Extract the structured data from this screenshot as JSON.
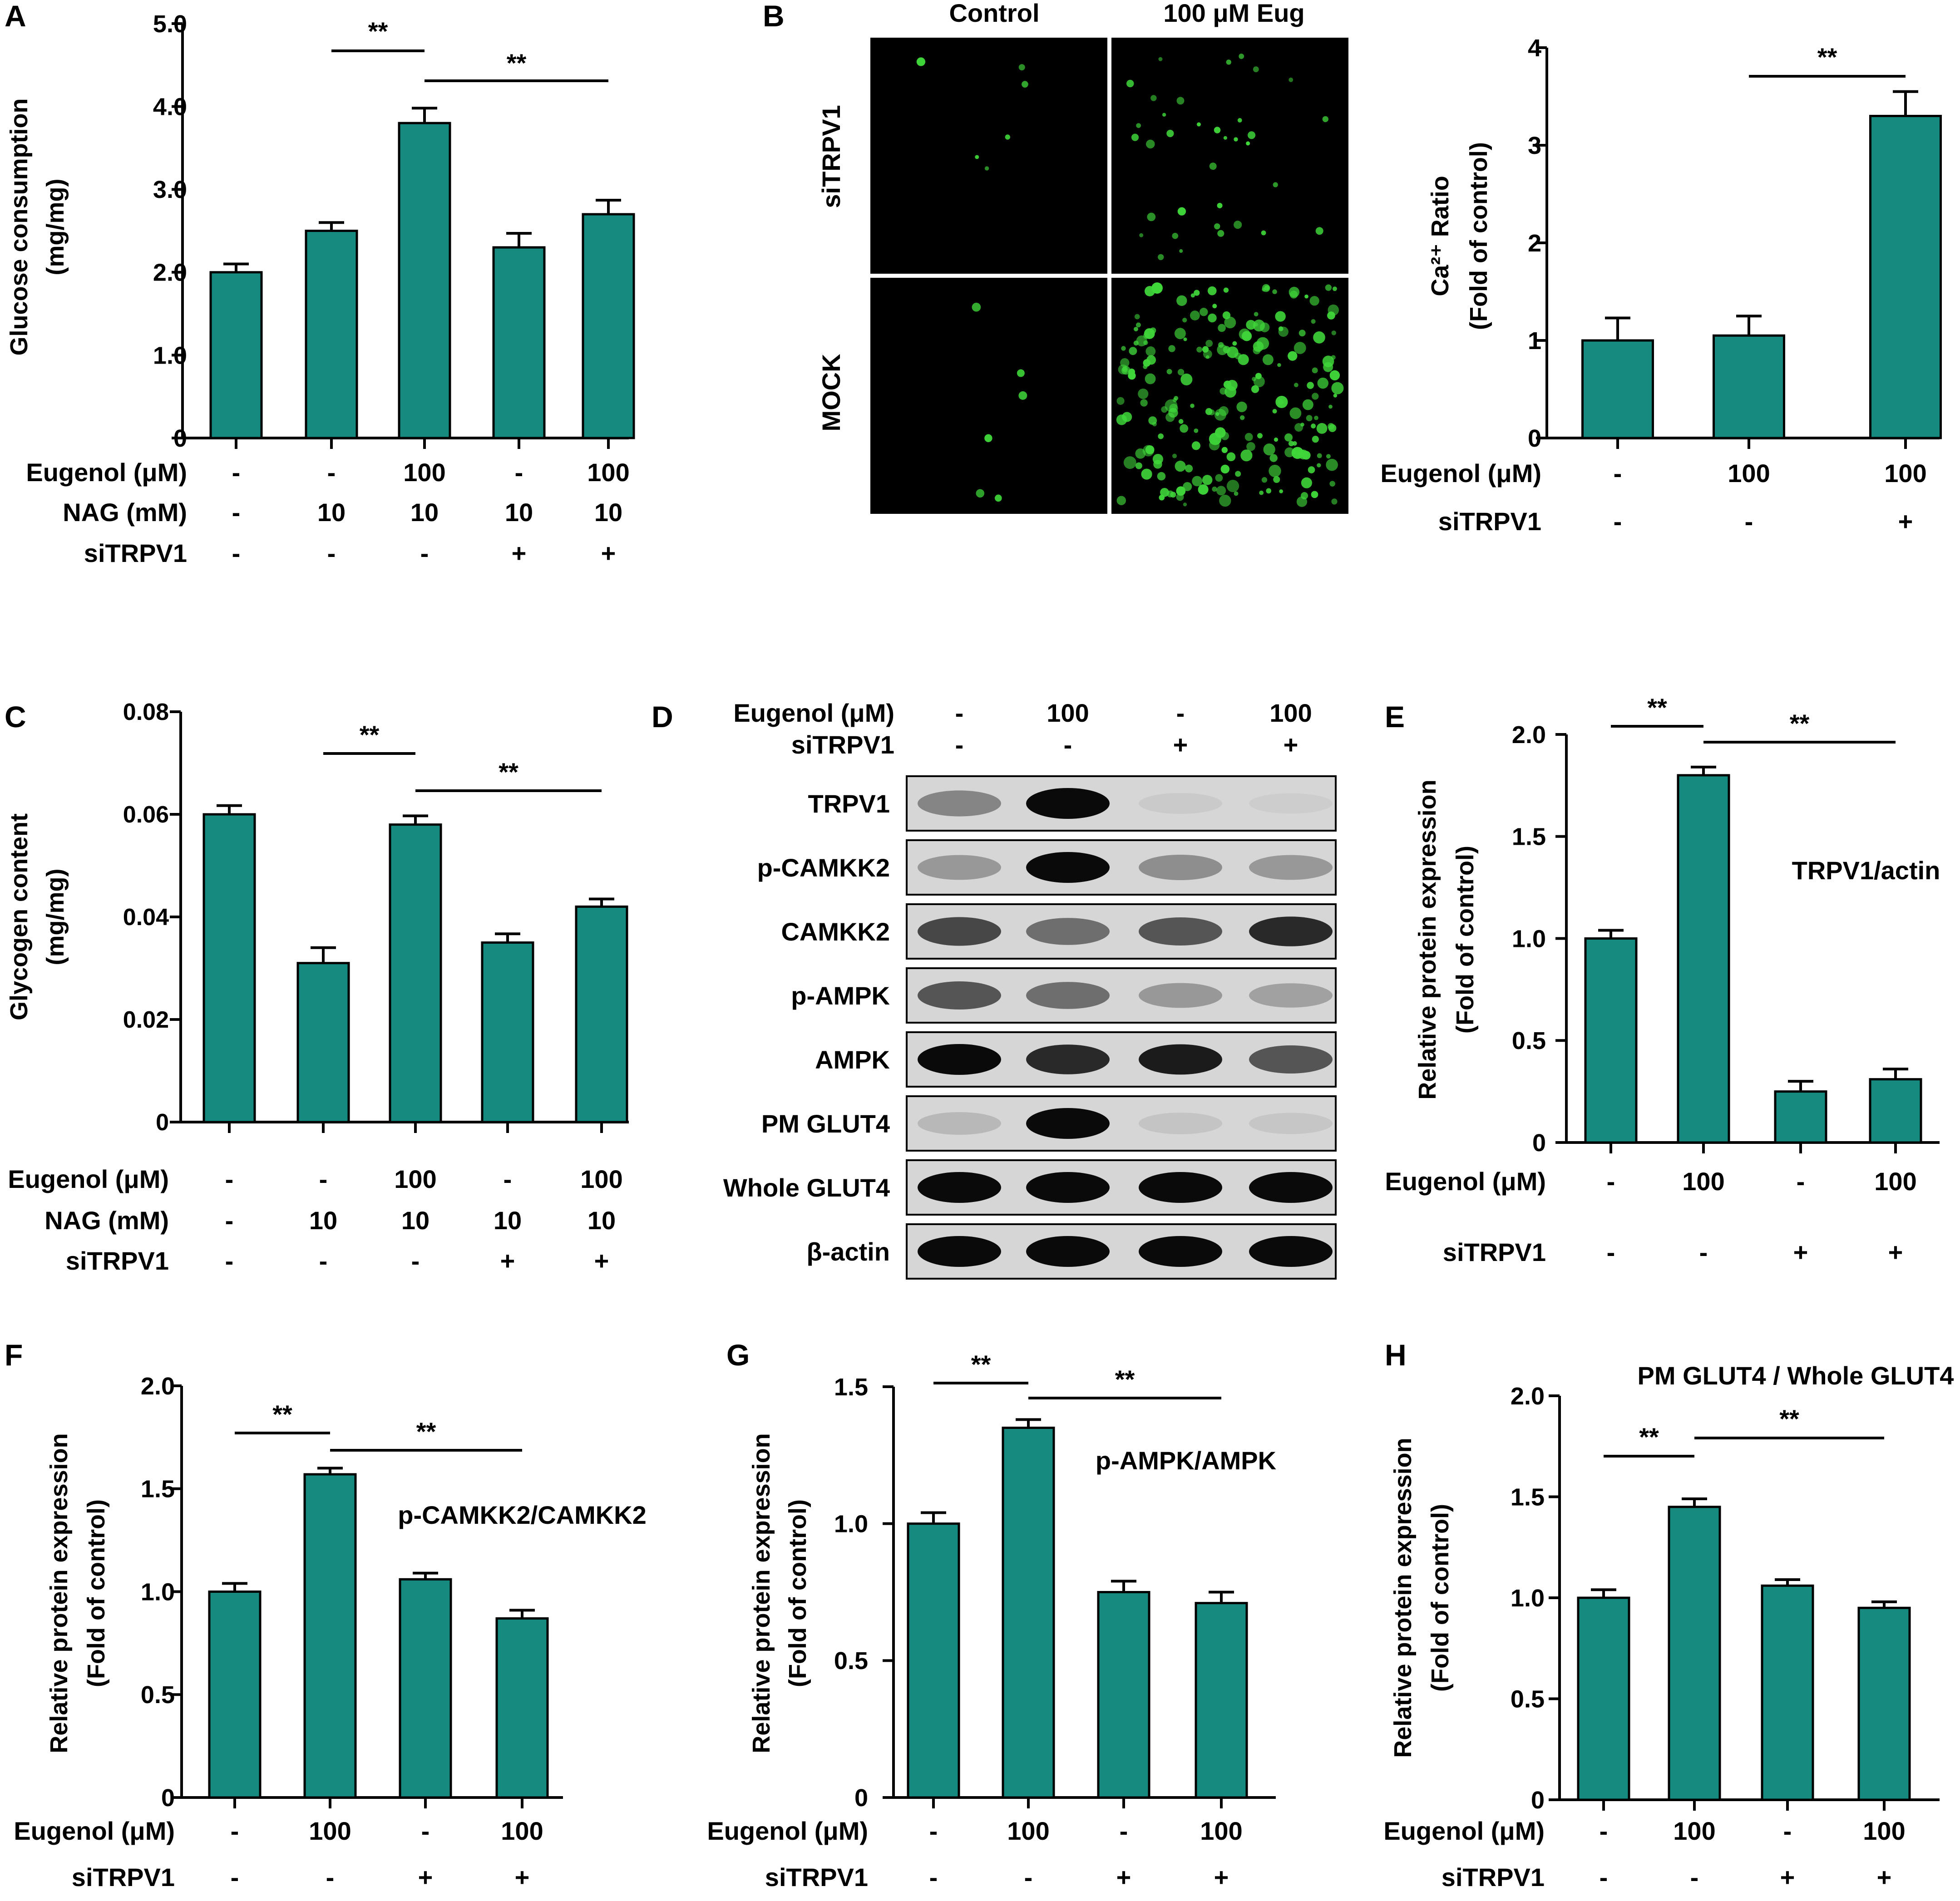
{
  "colors": {
    "bar": "#168a7f",
    "bar_stroke": "#000000",
    "axis": "#000000",
    "micro_bg": "#000000",
    "cell_green": "#3fd63a"
  },
  "panel_letters": {
    "A": "A",
    "B": "B",
    "C": "C",
    "D": "D",
    "E": "E",
    "F": "F",
    "G": "G",
    "H": "H"
  },
  "micrograph": {
    "columns": [
      "Control",
      "100 μM Eug"
    ],
    "rows": [
      "siTRPV1",
      "MOCK"
    ]
  },
  "western_blot": {
    "conditions": [
      {
        "label": "Eugenol (μM)",
        "values": [
          "-",
          "100",
          "-",
          "100"
        ]
      },
      {
        "label": "siTRPV1",
        "values": [
          "-",
          "-",
          "+",
          "+"
        ]
      }
    ],
    "bands": [
      "TRPV1",
      "p-CAMKK2",
      "CAMKK2",
      "p-AMPK",
      "AMPK",
      "PM GLUT4",
      "Whole GLUT4",
      "β-actin"
    ]
  },
  "chart_data": [
    {
      "panel": "A",
      "type": "bar",
      "ylabel": [
        "Glucose consumption",
        "(mg/mg)"
      ],
      "ylim": [
        0,
        5
      ],
      "yticks": [
        0,
        1,
        2,
        3,
        4,
        5
      ],
      "ytick_labels": [
        "0",
        "1.0",
        "2.0",
        "3.0",
        "4.0",
        "5.0"
      ],
      "values": [
        2.0,
        2.5,
        3.8,
        2.3,
        2.7
      ],
      "errors": [
        0.1,
        0.1,
        0.18,
        0.17,
        0.17
      ],
      "conditions": [
        {
          "label": "Eugenol (μM)",
          "values": [
            "-",
            "-",
            "100",
            "-",
            "100"
          ]
        },
        {
          "label": "NAG (mM)",
          "values": [
            "-",
            "10",
            "10",
            "10",
            "10"
          ]
        },
        {
          "label": "siTRPV1",
          "values": [
            "-",
            "-",
            "-",
            "+",
            "+"
          ]
        }
      ],
      "significance": [
        {
          "from": 1,
          "to": 2,
          "label": "**"
        },
        {
          "from": 2,
          "to": 4,
          "label": "**"
        }
      ]
    },
    {
      "panel": "B",
      "type": "bar",
      "ylabel": [
        "Ca²⁺ Ratio",
        "(Fold of control)"
      ],
      "ylim": [
        0,
        4
      ],
      "yticks": [
        0,
        1,
        2,
        3,
        4
      ],
      "ytick_labels": [
        "0",
        "1",
        "2",
        "3",
        "4"
      ],
      "values": [
        1.0,
        1.05,
        3.3
      ],
      "errors": [
        0.23,
        0.2,
        0.25
      ],
      "conditions": [
        {
          "label": "Eugenol (μM)",
          "values": [
            "-",
            "100",
            "100"
          ]
        },
        {
          "label": "siTRPV1",
          "values": [
            "-",
            "-",
            "+"
          ]
        }
      ],
      "significance": [
        {
          "from": 1,
          "to": 2,
          "label": "**"
        }
      ]
    },
    {
      "panel": "C",
      "type": "bar",
      "ylabel": [
        "Glycogen content",
        "(mg/mg)"
      ],
      "ylim": [
        0,
        0.08
      ],
      "yticks": [
        0,
        0.02,
        0.04,
        0.06,
        0.08
      ],
      "ytick_labels": [
        "0",
        "0.02",
        "0.04",
        "0.06",
        "0.08"
      ],
      "values": [
        0.06,
        0.031,
        0.058,
        0.035,
        0.042
      ],
      "errors": [
        0.0017,
        0.003,
        0.0017,
        0.0017,
        0.0015
      ],
      "conditions": [
        {
          "label": "Eugenol (μM)",
          "values": [
            "-",
            "-",
            "100",
            "-",
            "100"
          ]
        },
        {
          "label": "NAG (mM)",
          "values": [
            "-",
            "10",
            "10",
            "10",
            "10"
          ]
        },
        {
          "label": "siTRPV1",
          "values": [
            "-",
            "-",
            "-",
            "+",
            "+"
          ]
        }
      ],
      "significance": [
        {
          "from": 1,
          "to": 2,
          "label": "**"
        },
        {
          "from": 2,
          "to": 4,
          "label": "**"
        }
      ]
    },
    {
      "panel": "E",
      "type": "bar",
      "ylabel": [
        "Relative protein expression",
        "(Fold of control)"
      ],
      "annotation": "TRPV1/actin",
      "ylim": [
        0,
        2
      ],
      "yticks": [
        0,
        0.5,
        1,
        1.5,
        2
      ],
      "ytick_labels": [
        "0",
        "0.5",
        "1.0",
        "1.5",
        "2.0"
      ],
      "values": [
        1.0,
        1.8,
        0.25,
        0.31
      ],
      "errors": [
        0.04,
        0.04,
        0.05,
        0.05
      ],
      "conditions": [
        {
          "label": "Eugenol (μM)",
          "values": [
            "-",
            "100",
            "-",
            "100"
          ]
        },
        {
          "label": "siTRPV1",
          "values": [
            "-",
            "-",
            "+",
            "+"
          ]
        }
      ],
      "significance": [
        {
          "from": 0,
          "to": 1,
          "label": "**"
        },
        {
          "from": 1,
          "to": 3,
          "label": "**"
        }
      ]
    },
    {
      "panel": "F",
      "type": "bar",
      "ylabel": [
        "Relative protein expression",
        "(Fold of control)"
      ],
      "annotation": "p-CAMKK2/CAMKK2",
      "ylim": [
        0,
        2
      ],
      "yticks": [
        0,
        0.5,
        1,
        1.5,
        2
      ],
      "ytick_labels": [
        "0",
        "0.5",
        "1.0",
        "1.5",
        "2.0"
      ],
      "values": [
        1.0,
        1.57,
        1.06,
        0.87
      ],
      "errors": [
        0.04,
        0.03,
        0.03,
        0.04
      ],
      "conditions": [
        {
          "label": "Eugenol (μM)",
          "values": [
            "-",
            "100",
            "-",
            "100"
          ]
        },
        {
          "label": "siTRPV1",
          "values": [
            "-",
            "-",
            "+",
            "+"
          ]
        }
      ],
      "significance": [
        {
          "from": 0,
          "to": 1,
          "label": "**"
        },
        {
          "from": 1,
          "to": 3,
          "label": "**"
        }
      ]
    },
    {
      "panel": "G",
      "type": "bar",
      "ylabel": [
        "Relative protein expression",
        "(Fold of control)"
      ],
      "annotation": "p-AMPK/AMPK",
      "ylim": [
        0,
        1.5
      ],
      "yticks": [
        0,
        0.5,
        1,
        1.5
      ],
      "ytick_labels": [
        "0",
        "0.5",
        "1.0",
        "1.5"
      ],
      "values": [
        1.0,
        1.35,
        0.75,
        0.71
      ],
      "errors": [
        0.04,
        0.03,
        0.04,
        0.04
      ],
      "conditions": [
        {
          "label": "Eugenol (μM)",
          "values": [
            "-",
            "100",
            "-",
            "100"
          ]
        },
        {
          "label": "siTRPV1",
          "values": [
            "-",
            "-",
            "+",
            "+"
          ]
        }
      ],
      "significance": [
        {
          "from": 0,
          "to": 1,
          "label": "**"
        },
        {
          "from": 1,
          "to": 3,
          "label": "**"
        }
      ]
    },
    {
      "panel": "H",
      "type": "bar",
      "title": "PM GLUT4 / Whole GLUT4",
      "ylabel": [
        "Relative protein expression",
        "(Fold of control)"
      ],
      "ylim": [
        0,
        2
      ],
      "yticks": [
        0,
        0.5,
        1,
        1.5,
        2
      ],
      "ytick_labels": [
        "0",
        "0.5",
        "1.0",
        "1.5",
        "2.0"
      ],
      "values": [
        1.0,
        1.45,
        1.06,
        0.95
      ],
      "errors": [
        0.04,
        0.04,
        0.03,
        0.03
      ],
      "conditions": [
        {
          "label": "Eugenol (μM)",
          "values": [
            "-",
            "100",
            "-",
            "100"
          ]
        },
        {
          "label": "siTRPV1",
          "values": [
            "-",
            "-",
            "+",
            "+"
          ]
        }
      ],
      "significance": [
        {
          "from": 0,
          "to": 1,
          "label": "**"
        },
        {
          "from": 1,
          "to": 3,
          "label": "**"
        }
      ]
    }
  ]
}
